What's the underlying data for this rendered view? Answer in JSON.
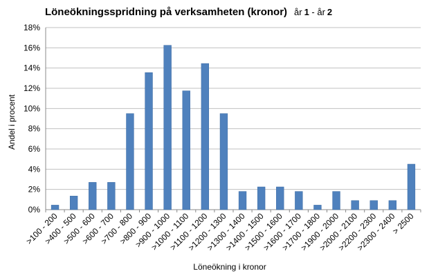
{
  "chart_data": {
    "type": "bar",
    "title": "Löneökningsspridning på verksamheten (kronor)",
    "subtitle": {
      "part1": "år",
      "part2": "1",
      "part3": " - år",
      "part4": "2"
    },
    "xlabel": "Löneökning i kronor",
    "ylabel": "Andel i procent",
    "ylim": [
      0,
      18
    ],
    "yticks": [
      0,
      2,
      4,
      6,
      8,
      10,
      12,
      14,
      16,
      18
    ],
    "ytick_suffix": "%",
    "grid": true,
    "categories": [
      ">100 - 200",
      ">400 - 500",
      ">500 - 600",
      ">600 - 700",
      ">700 - 800",
      ">800 - 900",
      ">900 - 1000",
      ">1000 - 1100",
      ">1100 - 1200",
      ">1200 - 1300",
      ">1300 - 1400",
      ">1400 - 1500",
      ">1500 - 1600",
      ">1600 - 1700",
      ">1700 - 1800",
      ">1900 - 2000",
      ">2000 - 2100",
      ">2200 - 2300",
      ">2300 - 2400",
      "> 2500"
    ],
    "values": [
      0.45,
      1.35,
      2.7,
      2.7,
      9.5,
      13.55,
      16.25,
      11.75,
      14.45,
      9.5,
      1.8,
      2.25,
      2.25,
      1.8,
      0.45,
      1.8,
      0.9,
      0.9,
      0.9,
      4.5
    ],
    "colors": {
      "bar_fill": "#4F81BD",
      "bar_stroke": "#3A6AA3",
      "grid": "#C0C0C0",
      "axis": "#888888"
    }
  }
}
